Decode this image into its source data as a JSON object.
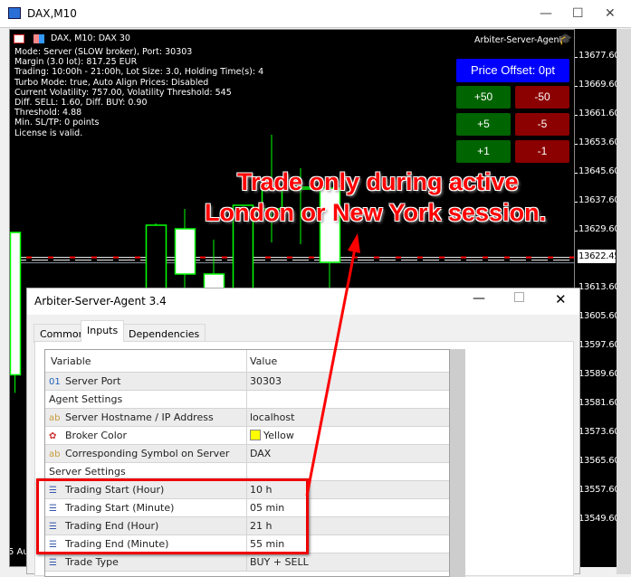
{
  "window": {
    "title": "DAX,M10",
    "minimize": "—",
    "maximize": "☐",
    "close": "✕"
  },
  "chart": {
    "header": "DAX, M10:  DAX 30",
    "expert_name": "Arbiter-Server-Agent",
    "info_lines": [
      "Mode: Server (SLOW broker), Port: 30303",
      "Margin (3.0 lot): 817.25 EUR",
      "Trading: 10:00h - 21:00h, Lot Size: 3.0, Holding Time(s): 4",
      "Turbo Mode: true, Auto Align Prices: Disabled",
      "Current Volatility: 757.00, Volatility Threshold: 545",
      "Diff. SELL: 1.60, Diff. BUY: 0.90",
      "Threshold: 4.88",
      "Min. SL/TP: 0 points",
      "License is valid."
    ],
    "price_offset_label": "Price Offset: 0pt",
    "buttons": [
      {
        "plus": "+50",
        "minus": "-50"
      },
      {
        "plus": "+5",
        "minus": "-5"
      },
      {
        "plus": "+1",
        "minus": "-1"
      }
    ],
    "price_ticks": [
      "13677.60",
      "13669.60",
      "13661.60",
      "13653.60",
      "13645.60",
      "13637.60",
      "13629.60",
      "13613.60",
      "13605.60",
      "13597.60",
      "13589.60",
      "13581.60",
      "13573.60",
      "13565.60",
      "13557.60",
      "13549.60"
    ],
    "current_price": "13622.45",
    "time_label": "5 Au",
    "candles": [
      {
        "high": 13629.35,
        "open": 13629.35,
        "close": 13590,
        "low": 13585
      },
      {
        "high": 13631.85,
        "open": 13605,
        "close": 13631.35,
        "low": 13600
      },
      {
        "high": 13635.85,
        "open": 13630.35,
        "close": 13617.85,
        "low": 13605
      },
      {
        "high": 13627.35,
        "open": 13617.85,
        "close": 13610,
        "low": 13605
      },
      {
        "high": 13636.85,
        "open": 13605,
        "close": 13636.85,
        "low": 13600
      },
      {
        "high": 13656.35,
        "open": 13635.85,
        "close": 13641.35,
        "low": 13626.6
      },
      {
        "high": 13647.1,
        "open": 13641.35,
        "close": 13641.85,
        "low": 13626.1
      },
      {
        "high": 13642.6,
        "open": 13641.6,
        "close": 13621.1,
        "low": 13607.1
      }
    ],
    "colors": {
      "bull_outline": "#00ff00",
      "bear_fill": "#ffffff",
      "offset_button": "#0000ff",
      "plus_button": "#006400",
      "minus_button": "#8b0000"
    }
  },
  "dialog": {
    "title": "Arbiter-Server-Agent 3.4",
    "tabs": [
      "Common",
      "Inputs",
      "Dependencies"
    ],
    "active_tab": "Inputs",
    "columns": [
      "Variable",
      "Value"
    ],
    "rows": [
      {
        "icon": "01",
        "name": "Server Port",
        "value": "30303"
      },
      {
        "icon": "",
        "name": "Agent Settings",
        "value": ""
      },
      {
        "icon": "ab",
        "name": "Server Hostname / IP Address",
        "value": "localhost"
      },
      {
        "icon": "color",
        "name": "Broker Color",
        "value": "Yellow"
      },
      {
        "icon": "ab",
        "name": "Corresponding Symbol on Server",
        "value": "DAX"
      },
      {
        "icon": "",
        "name": "Server Settings",
        "value": ""
      },
      {
        "icon": "enum",
        "name": "Trading Start (Hour)",
        "value": "10 h"
      },
      {
        "icon": "enum",
        "name": "Trading Start (Minute)",
        "value": "05 min"
      },
      {
        "icon": "enum",
        "name": "Trading End (Hour)",
        "value": "21 h"
      },
      {
        "icon": "enum",
        "name": "Trading End (Minute)",
        "value": "55 min"
      },
      {
        "icon": "enum",
        "name": "Trade Type",
        "value": "BUY + SELL"
      }
    ]
  },
  "annotation": {
    "line1": "Trade only during active",
    "line2": "London or New York session.",
    "color": "#ff0000"
  }
}
